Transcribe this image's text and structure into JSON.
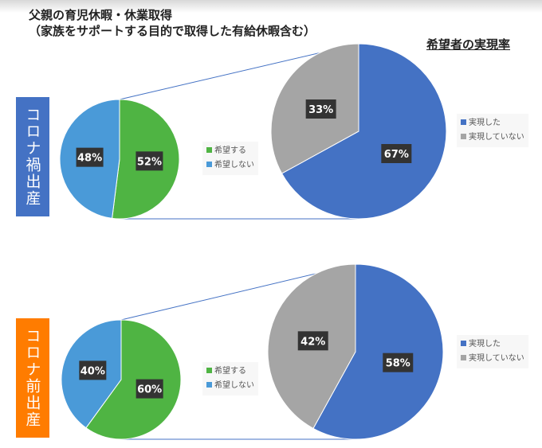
{
  "title": "父親の育児休暇・休業取得",
  "subtitle": "（家族をサポートする目的で取得した有給休暇含む）",
  "right_title": "希望者の実現率",
  "colors": {
    "green": "#4fb443",
    "lightblue": "#4a9ad8",
    "blue": "#4472c4",
    "gray": "#a5a5a5",
    "section1": "#4472c4",
    "section2": "#ff7c00"
  },
  "chart_data": [
    {
      "type": "pie",
      "section": "コロナ禍出産",
      "categories": [
        "希望する",
        "希望しない"
      ],
      "values": [
        52,
        48
      ],
      "labels": [
        "52%",
        "48%"
      ]
    },
    {
      "type": "pie",
      "section": "コロナ禍出産",
      "categories": [
        "実現した",
        "実現していない"
      ],
      "values": [
        67,
        33
      ],
      "labels": [
        "67%",
        "33%"
      ]
    },
    {
      "type": "pie",
      "section": "コロナ前出産",
      "categories": [
        "希望する",
        "希望しない"
      ],
      "values": [
        60,
        40
      ],
      "labels": [
        "60%",
        "40%"
      ]
    },
    {
      "type": "pie",
      "section": "コロナ前出産",
      "categories": [
        "実現した",
        "実現していない"
      ],
      "values": [
        58,
        42
      ],
      "labels": [
        "58%",
        "42%"
      ]
    }
  ],
  "sections": [
    "コロナ禍出産",
    "コロナ前出産"
  ]
}
